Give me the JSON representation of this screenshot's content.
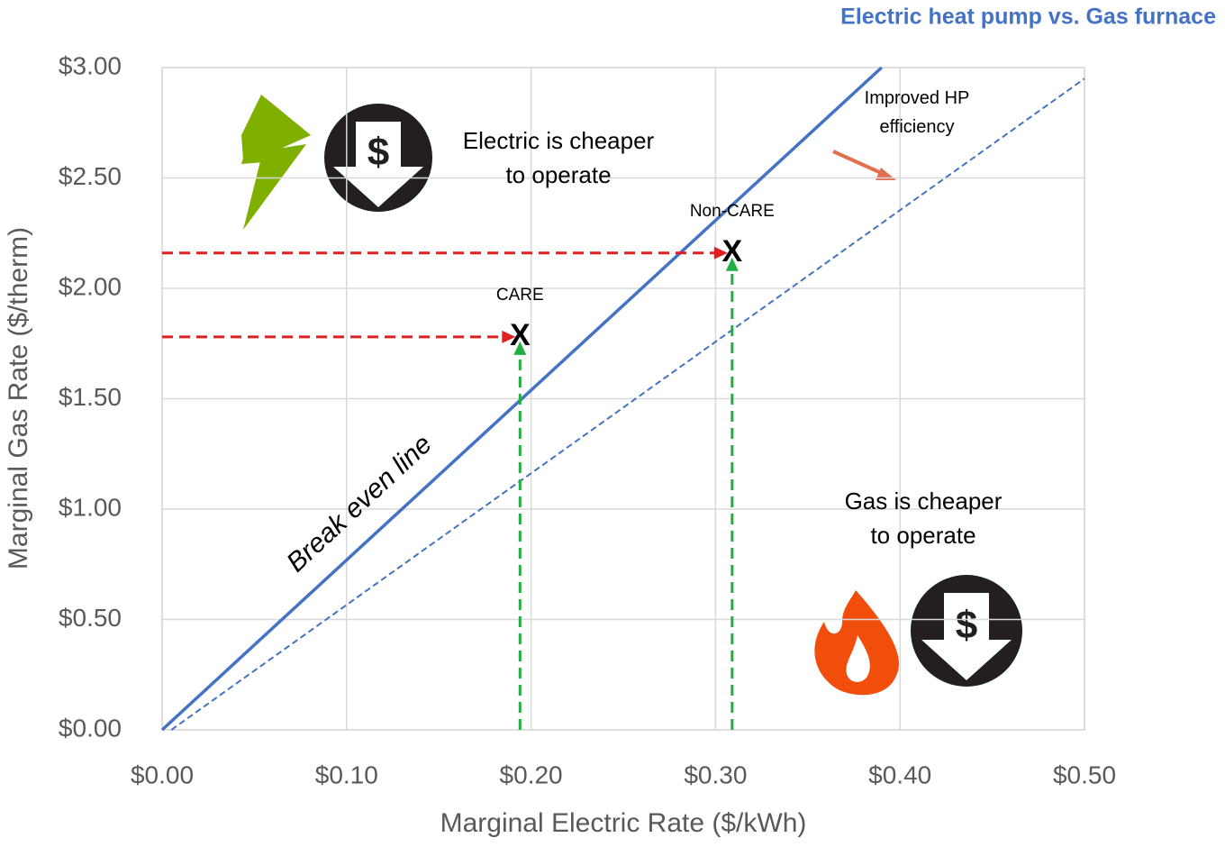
{
  "chart_data": {
    "type": "line",
    "title": "Electric heat pump vs. Gas furnace",
    "x_label": "Marginal Electric Rate ($/kWh)",
    "y_label": "Marginal Gas Rate ($/therm)",
    "xlim": [
      0,
      0.5
    ],
    "ylim": [
      0,
      3
    ],
    "xticks": [
      {
        "value": 0,
        "label": "$0.00"
      },
      {
        "value": 0.1,
        "label": "$0.10"
      },
      {
        "value": 0.2,
        "label": "$0.20"
      },
      {
        "value": 0.3,
        "label": "$0.30"
      },
      {
        "value": 0.4,
        "label": "$0.40"
      },
      {
        "value": 0.5,
        "label": "$0.50"
      }
    ],
    "yticks": [
      {
        "value": 0,
        "label": "$0.00"
      },
      {
        "value": 0.5,
        "label": "$0.50"
      },
      {
        "value": 1,
        "label": "$1.00"
      },
      {
        "value": 1.5,
        "label": "$1.50"
      },
      {
        "value": 2,
        "label": "$2.00"
      },
      {
        "value": 2.5,
        "label": "$2.50"
      },
      {
        "value": 3,
        "label": "$3.00"
      }
    ],
    "grid": true,
    "series": [
      {
        "name": "Break even line",
        "color": "#4472c4",
        "dashed": false,
        "x": [
          0,
          0.39
        ],
        "values": [
          0,
          3.0
        ]
      },
      {
        "name": "Improved HP efficiency",
        "color": "#4472c4",
        "dashed": true,
        "x": [
          0.005,
          0.5
        ],
        "values": [
          0,
          2.95
        ]
      }
    ],
    "points": [
      {
        "name": "CARE",
        "marker": "X",
        "x": 0.194,
        "y": 1.78
      },
      {
        "name": "Non-CARE",
        "marker": "X",
        "x": 0.309,
        "y": 2.16
      }
    ],
    "annotations": [
      {
        "lines": [
          "Electric is cheaper",
          "to operate"
        ]
      },
      {
        "lines": [
          "Gas is cheaper",
          "to operate"
        ]
      }
    ],
    "icon_text": "$"
  }
}
